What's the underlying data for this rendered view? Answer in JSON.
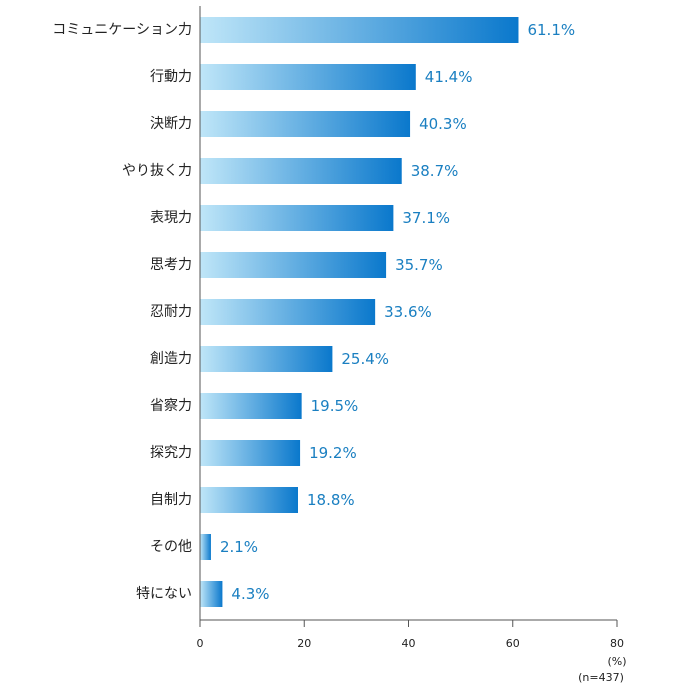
{
  "chart_data": {
    "type": "bar",
    "orientation": "horizontal",
    "categories": [
      "コミュニケーション力",
      "行動力",
      "決断力",
      "やり抜く力",
      "表現力",
      "思考力",
      "忍耐力",
      "創造力",
      "省察力",
      "探究力",
      "自制力",
      "その他",
      "特にない"
    ],
    "values": [
      61.1,
      41.4,
      40.3,
      38.7,
      37.1,
      35.7,
      33.6,
      25.4,
      19.5,
      19.2,
      18.8,
      2.1,
      4.3
    ],
    "value_labels": [
      "61.1%",
      "41.4%",
      "40.3%",
      "38.7%",
      "37.1%",
      "35.7%",
      "33.6%",
      "25.4%",
      "19.5%",
      "19.2%",
      "18.8%",
      "2.1%",
      "4.3%"
    ],
    "xlim": [
      0,
      80
    ],
    "xticks": [
      "0",
      "20",
      "40",
      "60",
      "80"
    ],
    "unit_label": "(%)",
    "sample_note": "(n=437)",
    "gradient": [
      "#bfe6f8",
      "#0a78cc"
    ],
    "value_color": "#1a7fc1",
    "grid": false
  }
}
